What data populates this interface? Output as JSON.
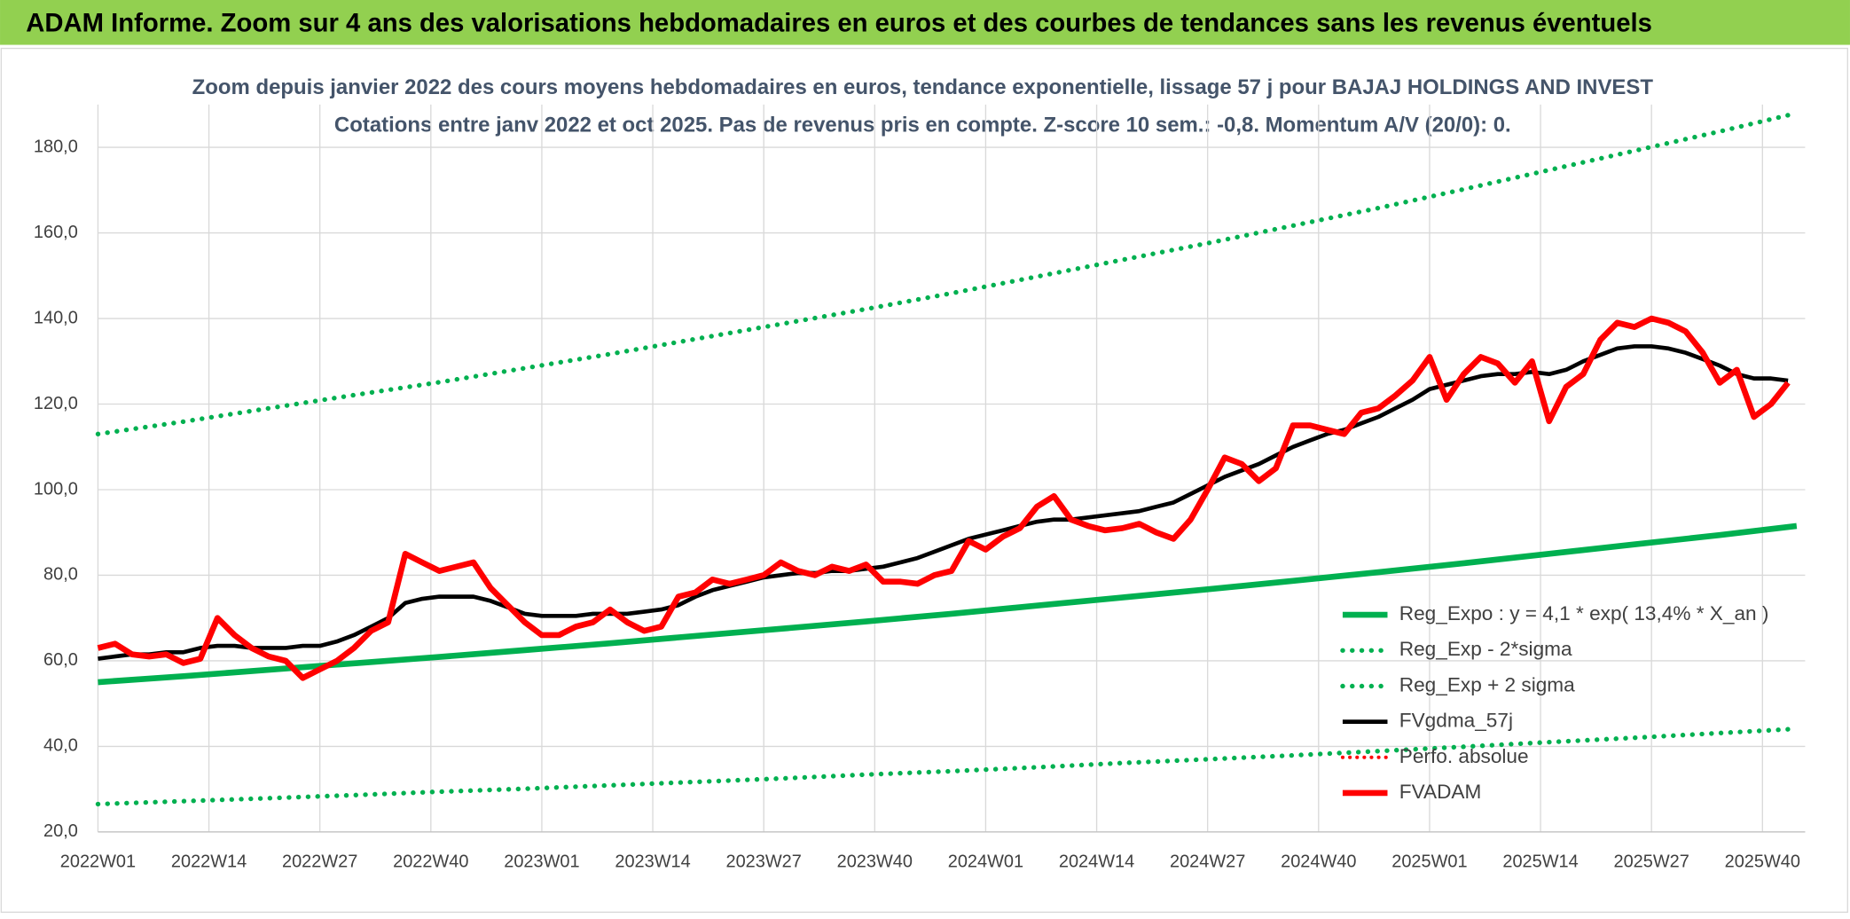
{
  "chart_data": {
    "type": "line",
    "banner": "ADAM Informe. Zoom sur 4 ans des valorisations hebdomadaires en euros et des courbes de tendances sans les revenus éventuels",
    "title": "Zoom depuis janvier 2022 des cours moyens hebdomadaires en euros, tendance exponentielle, lissage 57 j pour BAJAJ HOLDINGS AND INVEST",
    "subtitle": "Cotations entre janv 2022 et oct 2025. Pas de revenus pris en compte. Z-score 10 sem.: -0,8. Momentum A/V (20/0): 0.",
    "xlim": [
      0,
      200
    ],
    "xticks": [
      {
        "value": 0,
        "label": "2022W01"
      },
      {
        "value": 13,
        "label": "2022W14"
      },
      {
        "value": 26,
        "label": "2022W27"
      },
      {
        "value": 39,
        "label": "2022W40"
      },
      {
        "value": 52,
        "label": "2023W01"
      },
      {
        "value": 65,
        "label": "2023W14"
      },
      {
        "value": 78,
        "label": "2023W27"
      },
      {
        "value": 91,
        "label": "2023W40"
      },
      {
        "value": 104,
        "label": "2024W01"
      },
      {
        "value": 117,
        "label": "2024W14"
      },
      {
        "value": 130,
        "label": "2024W27"
      },
      {
        "value": 143,
        "label": "2024W40"
      },
      {
        "value": 156,
        "label": "2025W01"
      },
      {
        "value": 169,
        "label": "2025W14"
      },
      {
        "value": 182,
        "label": "2025W27"
      },
      {
        "value": 195,
        "label": "2025W40"
      }
    ],
    "ylim": [
      20,
      190
    ],
    "yticks": [
      {
        "value": 20,
        "label": "20,0"
      },
      {
        "value": 40,
        "label": "40,0"
      },
      {
        "value": 60,
        "label": "60,0"
      },
      {
        "value": 80,
        "label": "80,0"
      },
      {
        "value": 100,
        "label": "100,0"
      },
      {
        "value": 120,
        "label": "120,0"
      },
      {
        "value": 140,
        "label": "140,0"
      },
      {
        "value": 160,
        "label": "160,0"
      },
      {
        "value": 180,
        "label": "180,0"
      }
    ],
    "grid": true,
    "legend": "right",
    "series": [
      {
        "name": "Reg_Expo : y = 4,1 * exp( 13,4% *  X_an )",
        "color": "#00b050",
        "style": "solid",
        "width": 5,
        "x": [
          0,
          10,
          20,
          30,
          40,
          50,
          60,
          70,
          80,
          90,
          100,
          110,
          120,
          130,
          140,
          150,
          160,
          170,
          180,
          190,
          199
        ],
        "values": [
          55.0,
          56.4,
          57.9,
          59.4,
          60.9,
          62.5,
          64.1,
          65.8,
          67.5,
          69.2,
          71.0,
          72.9,
          74.8,
          76.7,
          78.7,
          80.7,
          82.8,
          85.0,
          87.2,
          89.4,
          91.5
        ]
      },
      {
        "name": "Reg_Exp - 2*sigma",
        "color": "#00b050",
        "style": "dotted",
        "width": 4,
        "x": [
          0,
          10,
          20,
          30,
          40,
          50,
          60,
          70,
          80,
          90,
          100,
          110,
          120,
          130,
          140,
          150,
          160,
          170,
          180,
          190,
          199
        ],
        "values": [
          26.5,
          27.2,
          27.9,
          28.6,
          29.4,
          30.1,
          30.9,
          31.7,
          32.5,
          33.4,
          34.2,
          35.1,
          36.1,
          37.0,
          37.9,
          38.9,
          39.9,
          41.0,
          42.0,
          43.1,
          44.1
        ]
      },
      {
        "name": "Reg_Exp + 2 sigma",
        "color": "#00b050",
        "style": "dotted",
        "width": 4,
        "x": [
          0,
          10,
          20,
          30,
          40,
          50,
          60,
          70,
          80,
          90,
          100,
          110,
          120,
          130,
          140,
          150,
          160,
          170,
          180,
          190,
          199
        ],
        "values": [
          113.0,
          115.9,
          119.0,
          122.1,
          125.1,
          128.4,
          131.7,
          135.2,
          138.7,
          142.2,
          145.9,
          149.8,
          153.7,
          157.6,
          161.7,
          165.8,
          170.2,
          174.7,
          179.2,
          183.7,
          188.0
        ]
      },
      {
        "name": "FVgdma_57j",
        "color": "#000000",
        "style": "solid",
        "width": 3.5,
        "x": [
          0,
          2,
          4,
          6,
          8,
          10,
          12,
          14,
          16,
          18,
          20,
          22,
          24,
          26,
          28,
          30,
          32,
          34,
          36,
          38,
          40,
          42,
          44,
          46,
          48,
          50,
          52,
          54,
          56,
          58,
          60,
          62,
          64,
          66,
          68,
          70,
          72,
          74,
          76,
          78,
          80,
          82,
          84,
          86,
          88,
          90,
          92,
          94,
          96,
          98,
          100,
          102,
          104,
          106,
          108,
          110,
          112,
          114,
          116,
          118,
          120,
          122,
          124,
          126,
          128,
          130,
          132,
          134,
          136,
          138,
          140,
          142,
          144,
          146,
          148,
          150,
          152,
          154,
          156,
          158,
          160,
          162,
          164,
          166,
          168,
          170,
          172,
          174,
          176,
          178,
          180,
          182,
          184,
          186,
          188,
          190,
          192,
          194,
          196,
          198
        ],
        "values": [
          60.5,
          61,
          61.5,
          61.5,
          62,
          62,
          63,
          63.5,
          63.5,
          63,
          63,
          63,
          63.5,
          63.5,
          64.5,
          66,
          68,
          70,
          73.5,
          74.5,
          75,
          75,
          75,
          74,
          72.5,
          71,
          70.5,
          70.5,
          70.5,
          71,
          71,
          71,
          71.5,
          72,
          73,
          75,
          76.5,
          77.5,
          78.5,
          79.5,
          80,
          80.5,
          80.5,
          81,
          81,
          81.5,
          82,
          83,
          84,
          85.5,
          87,
          88.5,
          89.5,
          90.5,
          91.5,
          92.5,
          93,
          93,
          93.5,
          94,
          94.5,
          95,
          96,
          97,
          99,
          101,
          103,
          104.5,
          106,
          108,
          110,
          111.5,
          113,
          114,
          115.5,
          117,
          119,
          121,
          123.5,
          124.5,
          125.5,
          126.5,
          127,
          127,
          127.5,
          127,
          128,
          130,
          131.5,
          133,
          133.5,
          133.5,
          133,
          132,
          130.5,
          129,
          127,
          126,
          126,
          125.5
        ]
      },
      {
        "name": "Perfo. absolue",
        "color": "#ff0000",
        "style": "dotted",
        "width": 3,
        "x": [],
        "values": []
      },
      {
        "name": "FVADAM",
        "color": "#ff0000",
        "style": "solid",
        "width": 5,
        "x": [
          0,
          2,
          4,
          6,
          8,
          10,
          12,
          14,
          16,
          18,
          20,
          22,
          24,
          26,
          28,
          30,
          32,
          34,
          36,
          38,
          40,
          42,
          44,
          46,
          48,
          50,
          52,
          54,
          56,
          58,
          60,
          62,
          64,
          66,
          68,
          70,
          72,
          74,
          76,
          78,
          80,
          82,
          84,
          86,
          88,
          90,
          92,
          94,
          96,
          98,
          100,
          102,
          104,
          106,
          108,
          110,
          112,
          114,
          116,
          118,
          120,
          122,
          124,
          126,
          128,
          130,
          132,
          134,
          136,
          138,
          140,
          142,
          144,
          146,
          148,
          150,
          152,
          154,
          156,
          158,
          160,
          162,
          164,
          166,
          168,
          170,
          172,
          174,
          176,
          178,
          180,
          182,
          184,
          186,
          188,
          190,
          192,
          194,
          196,
          198
        ],
        "values": [
          63,
          64,
          61.5,
          61,
          61.5,
          59.5,
          60.5,
          70,
          66,
          63,
          61,
          60,
          56,
          58,
          60,
          63,
          67,
          69,
          85,
          83,
          81,
          82,
          83,
          77,
          73,
          69,
          66,
          66,
          68,
          69,
          72,
          69,
          67,
          68,
          75,
          76,
          79,
          78,
          79,
          80,
          83,
          81,
          80,
          82,
          81,
          82.5,
          78.5,
          78.5,
          78,
          80,
          81,
          88,
          86,
          89,
          91,
          96,
          98.5,
          93,
          91.5,
          90.5,
          91,
          92,
          90,
          88.5,
          93,
          100,
          107.5,
          106,
          102,
          105,
          115,
          115,
          114,
          113,
          118,
          119,
          122,
          125.5,
          131,
          121,
          127,
          131,
          129.5,
          125,
          130,
          116,
          124,
          127,
          135,
          139,
          138,
          140,
          139,
          137,
          132,
          125,
          128,
          117,
          120,
          125
        ]
      }
    ]
  }
}
